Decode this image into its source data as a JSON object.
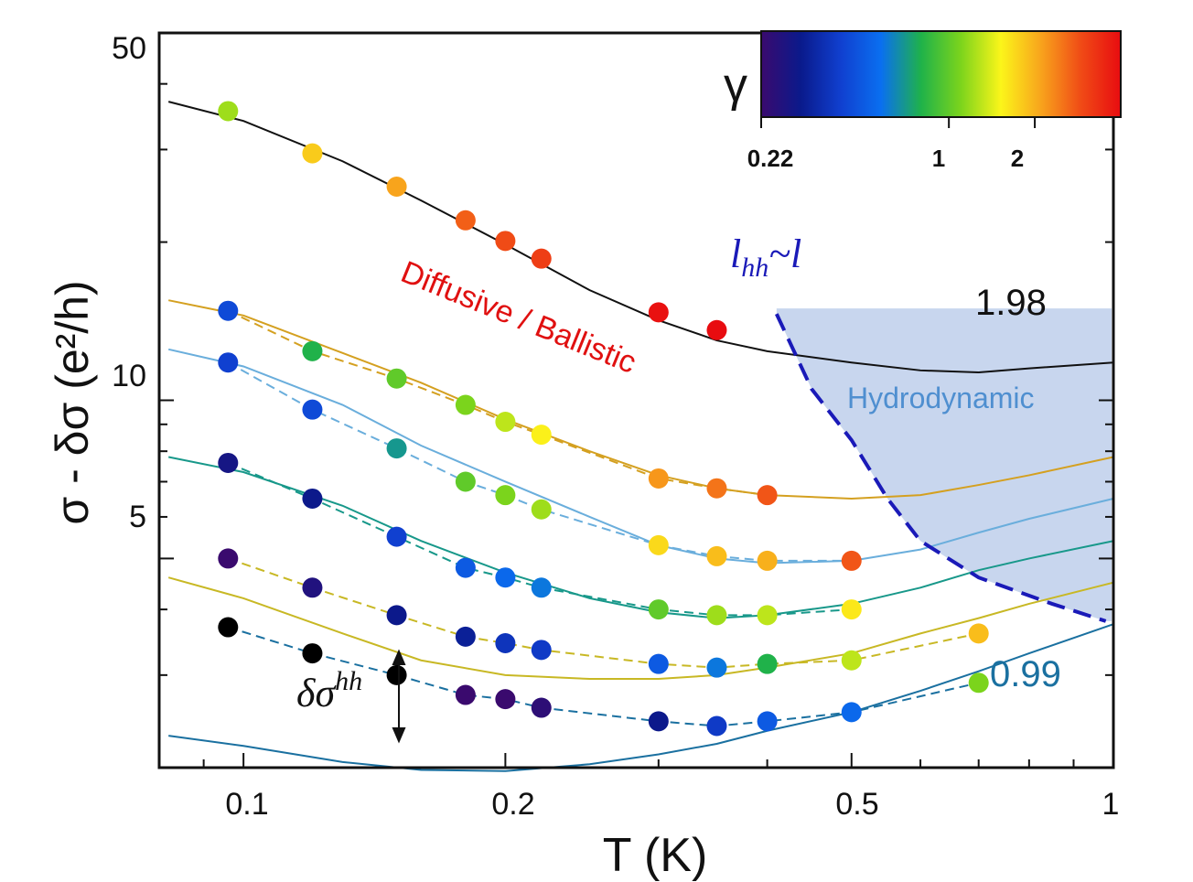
{
  "chart_data": {
    "type": "scatter",
    "xlabel": "T (K)",
    "ylabel": "σ - δσ (e²/h)",
    "xscale": "log",
    "yscale": "log",
    "xlim": [
      0.08,
      1
    ],
    "ylim": [
      2,
      50
    ],
    "x_ticks": [
      "0.1",
      "0.2",
      "0.5",
      "1"
    ],
    "y_ticks": [
      "5",
      "10",
      "50"
    ],
    "colorbar": {
      "label": "γ",
      "scale": "log",
      "range": [
        0.22,
        4
      ],
      "ticks": [
        "0.22",
        "1",
        "2"
      ],
      "colors": [
        "#3a0a6e",
        "#0a1a8c",
        "#1040d0",
        "#0a6ff0",
        "#1fb24a",
        "#7cd41c",
        "#fbf51a",
        "#f8a41c",
        "#f04b16",
        "#e80c10"
      ]
    },
    "annotations": {
      "regime_diffusive": "Diffusive / Ballistic",
      "regime_hydro": "Hydrodynamic",
      "boundary_label": "l",
      "boundary_sub": "hh",
      "boundary_tilde": "~",
      "boundary_rhs": "l",
      "correction_label": "δσ",
      "correction_sup": "hh",
      "top_curve_label": "1.98",
      "bottom_curve_label": "0.99"
    },
    "series": [
      {
        "color": "#111111",
        "curve": [
          [
            0.082,
            37
          ],
          [
            0.1,
            34
          ],
          [
            0.13,
            28.5
          ],
          [
            0.16,
            24
          ],
          [
            0.2,
            19.8
          ],
          [
            0.25,
            16.2
          ],
          [
            0.3,
            14.2
          ],
          [
            0.35,
            13
          ],
          [
            0.4,
            12.4
          ],
          [
            0.5,
            11.8
          ],
          [
            0.6,
            11.4
          ],
          [
            0.7,
            11.3
          ],
          [
            0.8,
            11.5
          ],
          [
            1.0,
            11.8
          ]
        ],
        "points": [
          {
            "T": 0.096,
            "s": 35.5,
            "g": 1.2
          },
          {
            "T": 0.12,
            "s": 29.5,
            "g": 1.8
          },
          {
            "T": 0.15,
            "s": 25.5,
            "g": 2.1
          },
          {
            "T": 0.18,
            "s": 22.0,
            "g": 2.7
          },
          {
            "T": 0.2,
            "s": 20.1,
            "g": 2.9
          },
          {
            "T": 0.22,
            "s": 18.6,
            "g": 3.1
          },
          {
            "T": 0.3,
            "s": 14.7,
            "g": 3.9
          },
          {
            "T": 0.35,
            "s": 13.6,
            "g": 4.1
          }
        ]
      },
      {
        "color": "#d4a020",
        "curve": [
          [
            0.082,
            15.5
          ],
          [
            0.1,
            14.5
          ],
          [
            0.13,
            12.3
          ],
          [
            0.16,
            10.8
          ],
          [
            0.2,
            9.2
          ],
          [
            0.25,
            8.0
          ],
          [
            0.3,
            7.2
          ],
          [
            0.35,
            6.8
          ],
          [
            0.4,
            6.6
          ],
          [
            0.5,
            6.5
          ],
          [
            0.6,
            6.6
          ],
          [
            0.7,
            6.9
          ],
          [
            0.8,
            7.2
          ],
          [
            1.0,
            7.8
          ]
        ],
        "points": [
          {
            "T": 0.096,
            "s": 14.8,
            "g": 0.45
          },
          {
            "T": 0.12,
            "s": 12.4,
            "g": 0.8
          },
          {
            "T": 0.15,
            "s": 11.0,
            "g": 1.0
          },
          {
            "T": 0.18,
            "s": 9.8,
            "g": 1.1
          },
          {
            "T": 0.2,
            "s": 9.1,
            "g": 1.3
          },
          {
            "T": 0.22,
            "s": 8.6,
            "g": 1.55
          },
          {
            "T": 0.3,
            "s": 7.1,
            "g": 2.2
          },
          {
            "T": 0.35,
            "s": 6.8,
            "g": 2.5
          },
          {
            "T": 0.4,
            "s": 6.6,
            "g": 2.8
          }
        ]
      },
      {
        "color": "#6aaedc",
        "curve": [
          [
            0.082,
            12.5
          ],
          [
            0.1,
            11.6
          ],
          [
            0.13,
            9.8
          ],
          [
            0.16,
            8.2
          ],
          [
            0.2,
            7.0
          ],
          [
            0.25,
            6.0
          ],
          [
            0.3,
            5.3
          ],
          [
            0.35,
            5.0
          ],
          [
            0.4,
            4.9
          ],
          [
            0.5,
            4.95
          ],
          [
            0.6,
            5.2
          ],
          [
            0.7,
            5.6
          ],
          [
            0.8,
            5.95
          ],
          [
            1.0,
            6.5
          ]
        ],
        "points": [
          {
            "T": 0.096,
            "s": 11.8,
            "g": 0.42
          },
          {
            "T": 0.12,
            "s": 9.6,
            "g": 0.45
          },
          {
            "T": 0.15,
            "s": 8.1,
            "g": 0.7
          },
          {
            "T": 0.18,
            "s": 7.0,
            "g": 1.0
          },
          {
            "T": 0.2,
            "s": 6.6,
            "g": 1.1
          },
          {
            "T": 0.22,
            "s": 6.2,
            "g": 1.2
          },
          {
            "T": 0.3,
            "s": 5.3,
            "g": 1.7
          },
          {
            "T": 0.35,
            "s": 5.05,
            "g": 1.9
          },
          {
            "T": 0.4,
            "s": 4.95,
            "g": 2.0
          },
          {
            "T": 0.5,
            "s": 4.95,
            "g": 2.8
          }
        ]
      },
      {
        "color": "#18988a",
        "curve": [
          [
            0.082,
            7.8
          ],
          [
            0.1,
            7.3
          ],
          [
            0.13,
            6.3
          ],
          [
            0.16,
            5.4
          ],
          [
            0.2,
            4.7
          ],
          [
            0.25,
            4.2
          ],
          [
            0.3,
            3.95
          ],
          [
            0.35,
            3.85
          ],
          [
            0.4,
            3.9
          ],
          [
            0.5,
            4.1
          ],
          [
            0.6,
            4.4
          ],
          [
            0.7,
            4.75
          ],
          [
            0.8,
            5.0
          ],
          [
            1.0,
            5.4
          ]
        ],
        "points": [
          {
            "T": 0.096,
            "s": 7.6,
            "g": 0.28
          },
          {
            "T": 0.12,
            "s": 6.5,
            "g": 0.3
          },
          {
            "T": 0.15,
            "s": 5.5,
            "g": 0.42
          },
          {
            "T": 0.18,
            "s": 4.8,
            "g": 0.5
          },
          {
            "T": 0.2,
            "s": 4.6,
            "g": 0.55
          },
          {
            "T": 0.22,
            "s": 4.4,
            "g": 0.6
          },
          {
            "T": 0.3,
            "s": 4.0,
            "g": 1.0
          },
          {
            "T": 0.35,
            "s": 3.9,
            "g": 1.2
          },
          {
            "T": 0.4,
            "s": 3.9,
            "g": 1.3
          },
          {
            "T": 0.5,
            "s": 4.0,
            "g": 1.6
          }
        ]
      },
      {
        "color": "#c8b824",
        "curve": [
          [
            0.082,
            4.6
          ],
          [
            0.1,
            4.2
          ],
          [
            0.13,
            3.6
          ],
          [
            0.16,
            3.2
          ],
          [
            0.2,
            3.0
          ],
          [
            0.25,
            2.95
          ],
          [
            0.3,
            2.95
          ],
          [
            0.35,
            3.0
          ],
          [
            0.4,
            3.1
          ],
          [
            0.5,
            3.3
          ],
          [
            0.6,
            3.6
          ],
          [
            0.7,
            3.85
          ],
          [
            0.8,
            4.1
          ],
          [
            1.0,
            4.5
          ]
        ],
        "points": [
          {
            "T": 0.096,
            "s": 5.0,
            "g": 0.22
          },
          {
            "T": 0.12,
            "s": 4.4,
            "g": 0.26
          },
          {
            "T": 0.15,
            "s": 3.9,
            "g": 0.3
          },
          {
            "T": 0.18,
            "s": 3.55,
            "g": 0.32
          },
          {
            "T": 0.2,
            "s": 3.45,
            "g": 0.38
          },
          {
            "T": 0.22,
            "s": 3.35,
            "g": 0.4
          },
          {
            "T": 0.3,
            "s": 3.15,
            "g": 0.5
          },
          {
            "T": 0.35,
            "s": 3.1,
            "g": 0.6
          },
          {
            "T": 0.4,
            "s": 3.15,
            "g": 0.8
          },
          {
            "T": 0.5,
            "s": 3.2,
            "g": 1.3
          },
          {
            "T": 0.7,
            "s": 3.6,
            "g": 1.9
          }
        ]
      },
      {
        "color": "#1a70a0",
        "curve": [
          [
            0.082,
            2.3
          ],
          [
            0.1,
            2.2
          ],
          [
            0.13,
            2.05
          ],
          [
            0.16,
            1.98
          ],
          [
            0.2,
            1.97
          ],
          [
            0.25,
            2.03
          ],
          [
            0.3,
            2.12
          ],
          [
            0.35,
            2.22
          ],
          [
            0.4,
            2.35
          ],
          [
            0.5,
            2.55
          ],
          [
            0.6,
            2.8
          ],
          [
            0.7,
            3.05
          ],
          [
            0.8,
            3.3
          ],
          [
            1.0,
            3.75
          ]
        ],
        "points": [
          {
            "T": 0.096,
            "s": 3.7,
            "g": 0.05
          },
          {
            "T": 0.12,
            "s": 3.3,
            "g": 0.05
          },
          {
            "T": 0.15,
            "s": 3.0,
            "g": 0.05
          },
          {
            "T": 0.18,
            "s": 2.75,
            "g": 0.22
          },
          {
            "T": 0.2,
            "s": 2.7,
            "g": 0.22
          },
          {
            "T": 0.22,
            "s": 2.6,
            "g": 0.24
          },
          {
            "T": 0.3,
            "s": 2.45,
            "g": 0.3
          },
          {
            "T": 0.35,
            "s": 2.4,
            "g": 0.4
          },
          {
            "T": 0.4,
            "s": 2.45,
            "g": 0.5
          },
          {
            "T": 0.5,
            "s": 2.55,
            "g": 0.55
          },
          {
            "T": 0.7,
            "s": 2.9,
            "g": 1.1
          }
        ]
      }
    ],
    "boundary": {
      "color": "#1a1ab8",
      "line": [
        [
          0.41,
          14.6
        ],
        [
          0.45,
          10.5
        ],
        [
          0.5,
          8.4
        ],
        [
          0.55,
          6.5
        ],
        [
          0.6,
          5.4
        ],
        [
          0.7,
          4.6
        ],
        [
          0.85,
          4.1
        ],
        [
          0.98,
          3.8
        ]
      ],
      "shaded_region": "#c8d6ee"
    }
  }
}
